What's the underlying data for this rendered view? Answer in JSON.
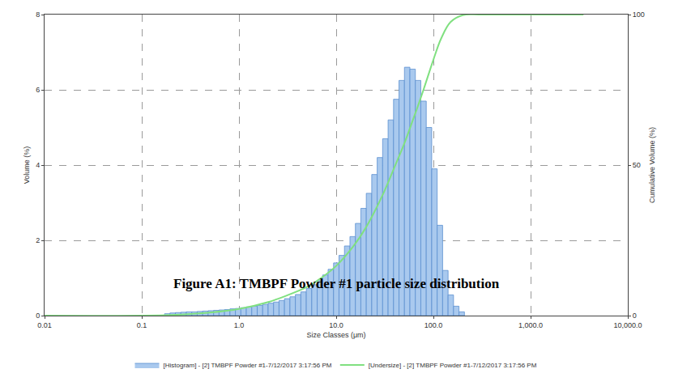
{
  "chart_data": {
    "type": "histogram",
    "title": "Figure A1: TMBPF Powder #1 particle size distribution",
    "x_label": "Size Classes (μm)",
    "y_label": "Volume (%)",
    "y2_label": "Cumulative Volume (%)",
    "log": "x",
    "grid": true,
    "legend": "bottom",
    "xlim": [
      0.01,
      10000
    ],
    "xticks": [
      0.01,
      0.1,
      {
        "value": 1,
        "label": "1.0"
      },
      {
        "value": 10,
        "label": "10.0"
      },
      {
        "value": 100,
        "label": "100.0"
      },
      {
        "value": 1000,
        "label": "1,000.0"
      },
      {
        "value": 10000,
        "label": "10,000.0"
      }
    ],
    "ylim": [
      0,
      8
    ],
    "yticks": [
      0,
      2,
      4,
      6,
      8
    ],
    "y2lim": [
      0,
      100
    ],
    "y2ticks": [
      0,
      50,
      100
    ],
    "series": [
      {
        "name": "[Histogram] - [2] TMBPF Powder #1-7/12/2017 3:17:56 PM",
        "type": "histogram",
        "color": "#a9c9ee",
        "bins": [
          0.1715,
          0.1951,
          0.222,
          0.2526,
          0.2875,
          0.3271,
          0.3722,
          0.4235,
          0.4819,
          0.5484,
          0.624,
          0.71,
          0.8079,
          0.9193,
          1.046,
          1.19,
          1.354,
          1.541,
          1.753,
          1.995,
          2.27,
          2.583,
          2.939,
          3.344,
          3.805,
          4.33,
          4.927,
          5.606,
          6.379,
          7.259,
          8.26,
          9.399,
          10.69,
          12.17,
          13.85,
          15.76,
          17.93,
          20.4,
          23.21,
          26.41,
          30.05,
          34.2,
          38.91,
          44.28,
          50.38,
          57.33,
          65.23,
          74.23,
          84.47,
          96.11,
          109.4,
          124.4,
          141.6,
          161.1,
          183.3,
          208.6
        ],
        "values": [
          0.05,
          0.07,
          0.08,
          0.09,
          0.1,
          0.1,
          0.11,
          0.12,
          0.13,
          0.14,
          0.15,
          0.16,
          0.18,
          0.19,
          0.21,
          0.23,
          0.25,
          0.27,
          0.3,
          0.33,
          0.36,
          0.4,
          0.45,
          0.5,
          0.56,
          0.63,
          0.72,
          0.82,
          0.94,
          1.08,
          1.23,
          1.4,
          1.6,
          1.85,
          2.1,
          2.45,
          2.85,
          3.25,
          3.75,
          4.2,
          4.7,
          5.2,
          5.75,
          6.25,
          6.6,
          6.55,
          6.25,
          5.7,
          5.0,
          3.9,
          2.4,
          1.2,
          0.55,
          0.25,
          0.1
        ]
      },
      {
        "name": "[Undersize] - [2] TMBPF Powder #1-7/12/2017 3:17:56 PM",
        "type": "line",
        "color": "#80e080",
        "axis": "y2",
        "x": [
          0.01,
          0.1,
          0.2,
          0.5,
          1,
          2,
          3,
          5,
          7,
          10,
          15,
          20,
          30,
          40,
          50,
          60,
          70,
          80,
          100,
          120,
          150,
          200,
          300,
          1000,
          3500
        ],
        "values": [
          0,
          0,
          0.2,
          1,
          2.2,
          4.5,
          6.5,
          9.5,
          12.5,
          16.5,
          23,
          29,
          40,
          49.5,
          57,
          64,
          70,
          75.5,
          85,
          92,
          97.5,
          99.8,
          100,
          100,
          100
        ]
      }
    ]
  }
}
